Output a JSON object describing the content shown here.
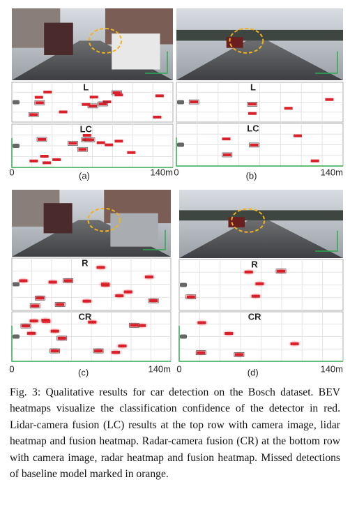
{
  "figure": {
    "panels": [
      {
        "heatmap_labels": [
          "L",
          "LC"
        ],
        "axis_start": "0",
        "axis_end": "140m",
        "label": "(a)"
      },
      {
        "heatmap_labels": [
          "L",
          "LC"
        ],
        "axis_start": "0",
        "axis_end": "140m",
        "label": "(b)"
      },
      {
        "heatmap_labels": [
          "R",
          "CR"
        ],
        "axis_start": "0",
        "axis_end": "140m",
        "label": "(c)"
      },
      {
        "heatmap_labels": [
          "R",
          "CR"
        ],
        "axis_start": "0",
        "axis_end": "140m",
        "label": "(d)"
      }
    ],
    "caption": "Fig. 3: Qualitative results for car detection on the Bosch dataset. BEV heatmaps visualize the classification confidence of the detector in red. Lidar-camera fusion (LC) results at the top row with camera image, lidar heatmap and fusion heatmap. Radar-camera fusion (CR) at the bottom row with camera image, radar heatmap and fusion heatmap. Missed detections of baseline model marked in orange."
  }
}
